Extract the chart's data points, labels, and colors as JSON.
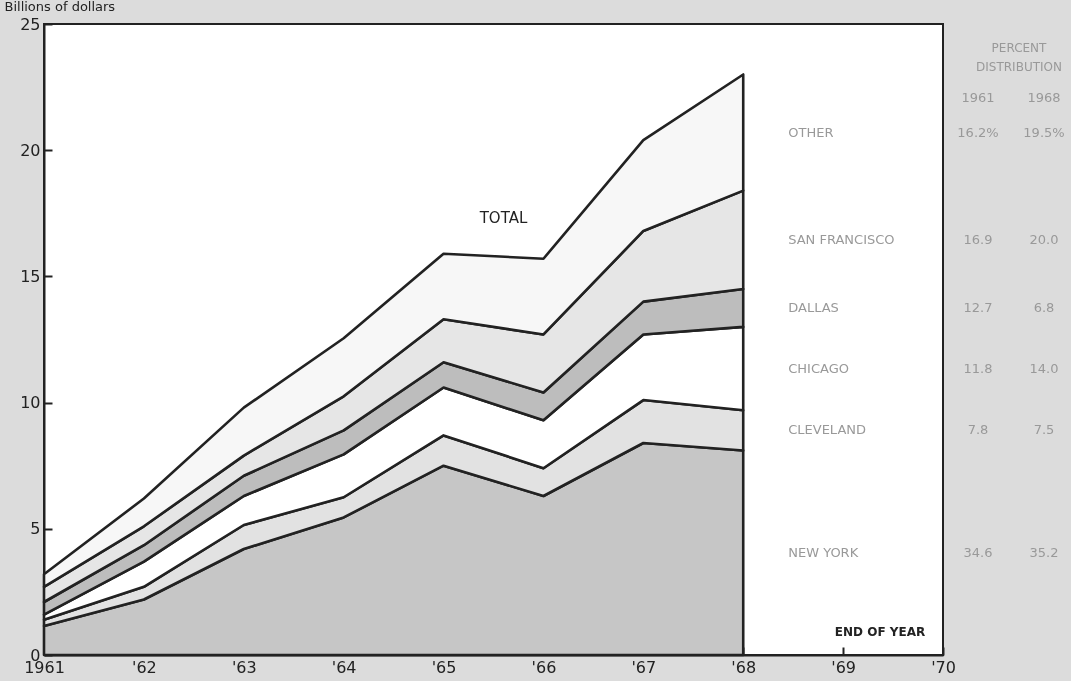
{
  "chart_data": {
    "type": "area",
    "stacked": true,
    "ylabel": "Billions of dollars",
    "x": [
      1961,
      1962,
      1963,
      1964,
      1965,
      1966,
      1967,
      1968
    ],
    "xlim": [
      1961,
      1970
    ],
    "xticks": [
      1961,
      {
        "value": 1962,
        "label": "'62"
      },
      {
        "value": 1963,
        "label": "'63"
      },
      {
        "value": 1964,
        "label": "'64"
      },
      {
        "value": 1965,
        "label": "'65"
      },
      {
        "value": 1966,
        "label": "'66"
      },
      {
        "value": 1967,
        "label": "'67"
      },
      {
        "value": 1968,
        "label": "'68"
      },
      {
        "value": 1969,
        "label": "'69"
      },
      {
        "value": 1970,
        "label": "'70"
      }
    ],
    "ylim": [
      0,
      25
    ],
    "yticks": [
      0,
      5,
      10,
      15,
      20,
      25
    ],
    "series": [
      {
        "name": "NEW YORK",
        "color": "#c6c6c6",
        "values": [
          1.15,
          2.2,
          4.2,
          5.45,
          7.5,
          6.3,
          8.4,
          8.1
        ]
      },
      {
        "name": "CLEVELAND",
        "color": "#e2e2e2",
        "values": [
          0.25,
          0.5,
          0.95,
          0.8,
          1.2,
          1.1,
          1.7,
          1.6
        ]
      },
      {
        "name": "CHICAGO",
        "color": "#ffffff",
        "values": [
          0.2,
          1.0,
          1.15,
          1.7,
          1.9,
          1.9,
          2.6,
          3.3
        ]
      },
      {
        "name": "DALLAS",
        "color": "#bdbdbd",
        "values": [
          0.5,
          0.65,
          0.8,
          0.95,
          1.0,
          1.1,
          1.3,
          1.5
        ]
      },
      {
        "name": "SAN FRANCISCO",
        "color": "#e6e6e6",
        "values": [
          0.6,
          0.75,
          0.8,
          1.35,
          1.7,
          2.3,
          2.8,
          3.9
        ]
      },
      {
        "name": "OTHER",
        "color": "#f7f7f7",
        "values": [
          0.5,
          1.1,
          1.9,
          2.3,
          2.6,
          3.0,
          3.6,
          4.6
        ]
      }
    ],
    "annotations": [
      {
        "text": "TOTAL",
        "x": 1965.6,
        "y": 15.8
      },
      "PERCENT DISTRIBUTION",
      "1961",
      "1968",
      "16.2%",
      "19.5%",
      "16.9",
      "20.0",
      "12.7",
      "6.8",
      "11.8",
      "14.0",
      "7.8",
      "7.5",
      "34.6",
      "35.2",
      "END OF YEAR"
    ]
  }
}
